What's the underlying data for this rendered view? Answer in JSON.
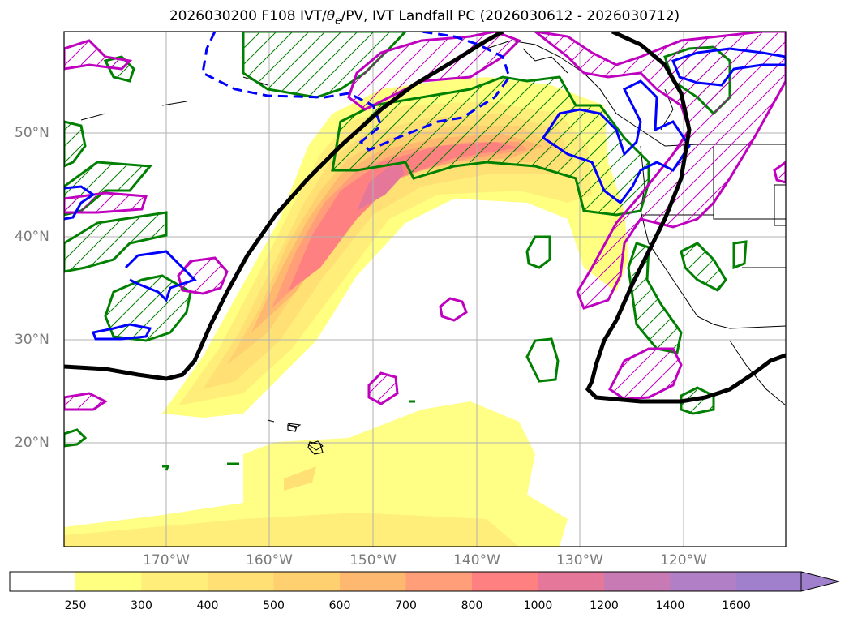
{
  "title": {
    "prefix": "2026030200 F108 IVT/",
    "theta": "θ",
    "theta_sub": "e",
    "suffix": "/PV, IVT Landfall PC (2026030612 - 2026030712)"
  },
  "map": {
    "lat_labels": [
      "50°N",
      "40°N",
      "30°N",
      "20°N"
    ],
    "lon_labels": [
      "170°W",
      "160°W",
      "150°W",
      "140°W",
      "130°W",
      "120°W"
    ],
    "colors": {
      "ivt_pc_contour": "#000000",
      "theta_e_contour": "#008000",
      "pv_contour_solid": "#0000ff",
      "pv_contour_dashed": "#0000ff",
      "magenta_contour": "#bf00bf",
      "gridline": "#b0b0b0",
      "coastline": "#000000"
    }
  },
  "colorbar": {
    "labels": [
      "250",
      "300",
      "400",
      "500",
      "600",
      "700",
      "800",
      "1000",
      "1200",
      "1400",
      "1600"
    ],
    "colors": [
      "#ffffff",
      "#ffff80",
      "#ffef7a",
      "#ffe074",
      "#ffd070",
      "#ffb870",
      "#ff9e78",
      "#ff8080",
      "#e5789a",
      "#c87ab4",
      "#b07fc6",
      "#a07fcc"
    ],
    "extend": "max"
  }
}
